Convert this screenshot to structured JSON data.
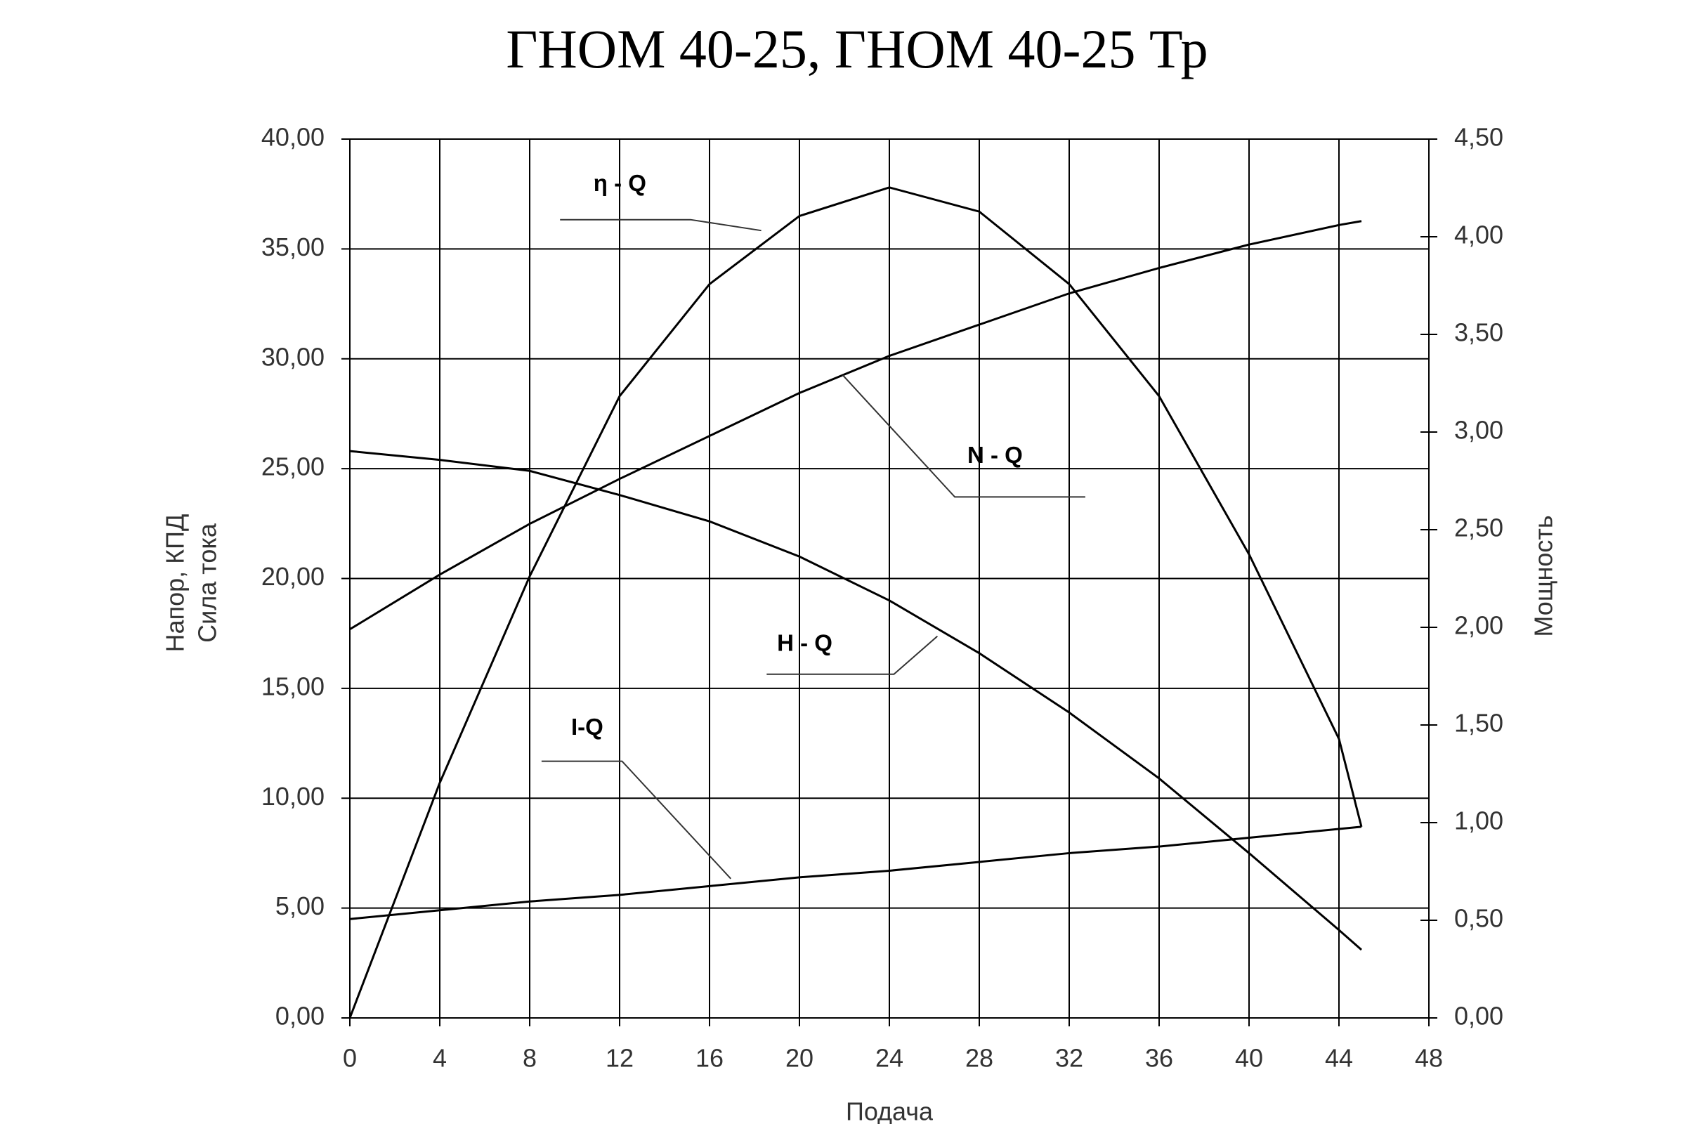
{
  "chart_data": {
    "type": "line",
    "title": "ГНОМ 40-25, ГНОМ 40-25 Тр",
    "xlabel": "Подача",
    "ylabel": [
      "Напор, КПД",
      "Сила тока"
    ],
    "y2label": "Мощность",
    "x": [
      0,
      4,
      8,
      12,
      16,
      20,
      24,
      28,
      32,
      36,
      40,
      44,
      45
    ],
    "series": [
      {
        "name": "η - Q",
        "color": "#000000",
        "axis": "y",
        "values": [
          0,
          10.7,
          20.1,
          28.3,
          33.4,
          36.5,
          37.8,
          36.7,
          33.4,
          28.3,
          21.1,
          12.7,
          8.7
        ]
      },
      {
        "name": "N - Q",
        "color": "#000000",
        "axis": "y2",
        "values": [
          1.99,
          2.27,
          2.53,
          2.76,
          2.98,
          3.2,
          3.39,
          3.55,
          3.71,
          3.84,
          3.96,
          4.06,
          4.08
        ]
      },
      {
        "name": "H - Q",
        "color": "#000000",
        "axis": "y",
        "values": [
          25.8,
          25.4,
          24.9,
          23.8,
          22.6,
          21.0,
          19.0,
          16.6,
          13.9,
          10.9,
          7.5,
          4.0,
          3.1
        ]
      },
      {
        "name": "I-Q",
        "color": "#000000",
        "axis": "y",
        "values": [
          4.5,
          4.9,
          5.3,
          5.6,
          6.0,
          6.4,
          6.7,
          7.1,
          7.5,
          7.8,
          8.2,
          8.6,
          8.7
        ]
      }
    ],
    "xlim": [
      0,
      48
    ],
    "xticks": [
      0,
      4,
      8,
      12,
      16,
      20,
      24,
      28,
      32,
      36,
      40,
      44,
      48
    ],
    "ylim": [
      0,
      40
    ],
    "yticks": [
      {
        "value": 0,
        "label": "0,00"
      },
      {
        "value": 5,
        "label": "5,00"
      },
      {
        "value": 10,
        "label": "10,00"
      },
      {
        "value": 15,
        "label": "15,00"
      },
      {
        "value": 20,
        "label": "20,00"
      },
      {
        "value": 25,
        "label": "25,00"
      },
      {
        "value": 30,
        "label": "30,00"
      },
      {
        "value": 35,
        "label": "35,00"
      },
      {
        "value": 40,
        "label": "40,00"
      }
    ],
    "y2lim": [
      0,
      4.5
    ],
    "y2ticks": [
      {
        "value": 0,
        "label": "0,00"
      },
      {
        "value": 0.5,
        "label": "0,50"
      },
      {
        "value": 1,
        "label": "1,00"
      },
      {
        "value": 1.5,
        "label": "1,50"
      },
      {
        "value": 2,
        "label": "2,00"
      },
      {
        "value": 2.5,
        "label": "2,50"
      },
      {
        "value": 3,
        "label": "3,00"
      },
      {
        "value": 3.5,
        "label": "3,50"
      },
      {
        "value": 4,
        "label": "4,00"
      },
      {
        "value": 4.5,
        "label": "4,50"
      }
    ],
    "grid": true
  }
}
